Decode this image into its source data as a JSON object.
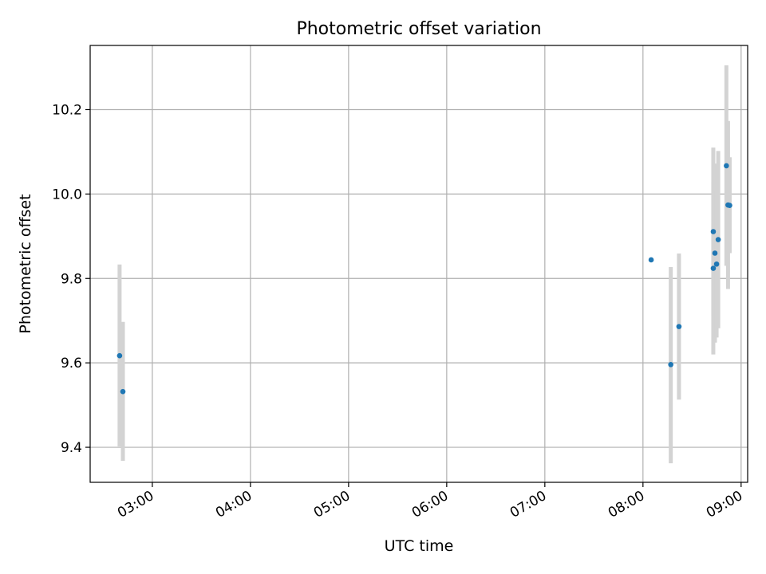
{
  "chart_data": {
    "type": "scatter",
    "title": "Photometric offset variation",
    "xlabel": "UTC time",
    "ylabel": "Photometric offset",
    "x_axis_type": "time",
    "xlim": [
      "02:22",
      "09:04"
    ],
    "ylim": [
      9.317,
      10.352
    ],
    "x_ticks": [
      "03:00",
      "04:00",
      "05:00",
      "06:00",
      "07:00",
      "08:00",
      "09:00"
    ],
    "y_ticks": [
      9.4,
      9.6,
      9.8,
      10.0,
      10.2
    ],
    "y_tick_labels": [
      "9.4",
      "9.6",
      "9.8",
      "10.0",
      "10.2"
    ],
    "grid": true,
    "legend": "none",
    "colors": {
      "point": "#1f77b4",
      "errorbar": "#d3d3d3",
      "grid": "#b0b0b0"
    },
    "series": [
      {
        "points": [
          {
            "x": "02:40",
            "y": 9.617,
            "ylow": 9.402,
            "yhigh": 9.833
          },
          {
            "x": "02:42",
            "y": 9.532,
            "ylow": 9.368,
            "yhigh": 9.697
          },
          {
            "x": "08:05",
            "y": 9.844,
            "ylow": 9.844,
            "yhigh": 9.844
          },
          {
            "x": "08:17",
            "y": 9.596,
            "ylow": 9.362,
            "yhigh": 9.827
          },
          {
            "x": "08:22",
            "y": 9.686,
            "ylow": 9.513,
            "yhigh": 9.859
          },
          {
            "x": "08:43",
            "y": 9.911,
            "ylow": 9.712,
            "yhigh": 10.11
          },
          {
            "x": "08:43",
            "y": 9.824,
            "ylow": 9.62,
            "yhigh": 10.03
          },
          {
            "x": "08:44",
            "y": 9.86,
            "ylow": 9.648,
            "yhigh": 10.072
          },
          {
            "x": "08:45",
            "y": 9.834,
            "ylow": 9.66,
            "yhigh": 10.008
          },
          {
            "x": "08:46",
            "y": 9.892,
            "ylow": 9.682,
            "yhigh": 10.102
          },
          {
            "x": "08:51",
            "y": 10.067,
            "ylow": 9.83,
            "yhigh": 10.305
          },
          {
            "x": "08:52",
            "y": 9.974,
            "ylow": 9.775,
            "yhigh": 10.173
          },
          {
            "x": "08:53",
            "y": 9.973,
            "ylow": 9.86,
            "yhigh": 10.087
          }
        ]
      }
    ]
  }
}
